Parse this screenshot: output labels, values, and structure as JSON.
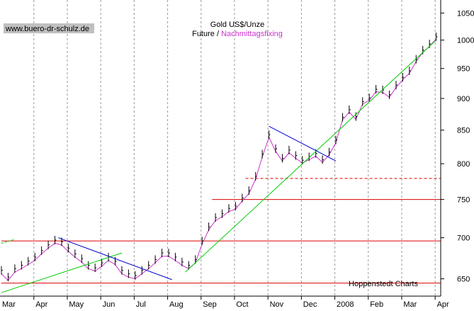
{
  "chart_data": {
    "type": "line",
    "title": "Gold US$/Unze",
    "subtitle_parts": [
      {
        "text": "Future / ",
        "color": "#000000"
      },
      {
        "text": "Nachmittagsfixing",
        "color": "#cc33cc"
      }
    ],
    "website": "www.buero-dr-schulz.de",
    "source": "Hoppenstedt Charts",
    "y_ticks": [
      650,
      700,
      750,
      800,
      850,
      900,
      950,
      1000,
      1050
    ],
    "ylim": [
      630,
      1075
    ],
    "months": [
      "Mar",
      "Apr",
      "May",
      "Jun",
      "Jul",
      "Aug",
      "Sep",
      "Oct",
      "Nov",
      "Dec",
      "2008",
      "Feb",
      "Mar",
      "Apr"
    ],
    "xlim": [
      0,
      13.5
    ],
    "grid": "vertical dashed",
    "colors": {
      "future": "#000000",
      "fixing": "#cc33cc",
      "support": "#dd0000",
      "uptrend": "#00cc00",
      "downtrend": "#0000cc"
    },
    "series": [
      {
        "name": "Future",
        "x": [
          0,
          0.2,
          0.4,
          0.6,
          0.8,
          1.0,
          1.2,
          1.4,
          1.6,
          1.8,
          2.0,
          2.2,
          2.4,
          2.6,
          2.8,
          3.0,
          3.2,
          3.4,
          3.6,
          3.8,
          4.0,
          4.2,
          4.4,
          4.6,
          4.8,
          5.0,
          5.2,
          5.4,
          5.6,
          5.8,
          6.0,
          6.2,
          6.4,
          6.6,
          6.8,
          7.0,
          7.2,
          7.4,
          7.6,
          7.8,
          8.0,
          8.2,
          8.4,
          8.6,
          8.8,
          9.0,
          9.2,
          9.4,
          9.6,
          9.8,
          10.0,
          10.2,
          10.4,
          10.6,
          10.8,
          11.0,
          11.2,
          11.4,
          11.6,
          11.8,
          12.0,
          12.2,
          12.4,
          12.6,
          12.8,
          13.0
        ],
        "values": [
          660,
          652,
          662,
          666,
          671,
          676,
          684,
          691,
          697,
          695,
          687,
          680,
          674,
          666,
          663,
          669,
          676,
          671,
          660,
          656,
          654,
          660,
          666,
          673,
          681,
          681,
          676,
          670,
          666,
          673,
          696,
          714,
          726,
          731,
          738,
          741,
          752,
          762,
          782,
          814,
          843,
          822,
          808,
          820,
          812,
          805,
          810,
          815,
          806,
          817,
          835,
          870,
          882,
          871,
          895,
          901,
          915,
          914,
          906,
          922,
          935,
          946,
          966,
          982,
          993,
          1006
        ]
      },
      {
        "name": "Nachmittagsfixing",
        "x": [
          0,
          0.2,
          0.4,
          0.6,
          0.8,
          1.0,
          1.2,
          1.4,
          1.6,
          1.8,
          2.0,
          2.2,
          2.4,
          2.6,
          2.8,
          3.0,
          3.2,
          3.4,
          3.6,
          3.8,
          4.0,
          4.2,
          4.4,
          4.6,
          4.8,
          5.0,
          5.2,
          5.4,
          5.6,
          5.8,
          6.0,
          6.2,
          6.4,
          6.6,
          6.8,
          7.0,
          7.2,
          7.4,
          7.6,
          7.8,
          8.0,
          8.2,
          8.4,
          8.6,
          8.8,
          9.0,
          9.2,
          9.4,
          9.6,
          9.8,
          10.0,
          10.2,
          10.4,
          10.6,
          10.8,
          11.0,
          11.2,
          11.4,
          11.6,
          11.8,
          12.0,
          12.2,
          12.4,
          12.6,
          12.8,
          13.0
        ],
        "values": [
          656,
          648,
          658,
          662,
          667,
          672,
          680,
          687,
          693,
          691,
          683,
          676,
          670,
          662,
          659,
          665,
          672,
          667,
          656,
          652,
          650,
          656,
          662,
          669,
          677,
          677,
          672,
          666,
          662,
          669,
          692,
          710,
          722,
          727,
          734,
          737,
          748,
          758,
          778,
          810,
          839,
          818,
          804,
          816,
          808,
          801,
          806,
          811,
          802,
          813,
          831,
          866,
          878,
          867,
          891,
          897,
          911,
          910,
          902,
          918,
          931,
          942,
          962,
          978,
          989,
          1002
        ]
      }
    ],
    "support_lines": [
      {
        "value": 645,
        "x_range": [
          0,
          13.5
        ],
        "style": "solid"
      },
      {
        "value": 696,
        "x_range": [
          0,
          13.5
        ],
        "style": "solid"
      },
      {
        "value": 750,
        "x_range": [
          6.3,
          13.5
        ],
        "style": "solid"
      },
      {
        "value": 779,
        "x_range": [
          7.3,
          13.5
        ],
        "style": "dashed"
      }
    ],
    "trend_lines": [
      {
        "color": "uptrend",
        "points": [
          [
            0,
            634
          ],
          [
            3.6,
            681
          ]
        ]
      },
      {
        "color": "uptrend",
        "points": [
          [
            5.5,
            658
          ],
          [
            13.0,
            1000
          ]
        ]
      },
      {
        "color": "uptrend",
        "points": [
          [
            0,
            693
          ],
          [
            0.4,
            698
          ]
        ],
        "style": "dashed"
      },
      {
        "color": "downtrend",
        "points": [
          [
            1.7,
            700
          ],
          [
            5.1,
            649
          ]
        ]
      },
      {
        "color": "downtrend",
        "points": [
          [
            8.0,
            856
          ],
          [
            10.0,
            804
          ]
        ]
      }
    ]
  }
}
